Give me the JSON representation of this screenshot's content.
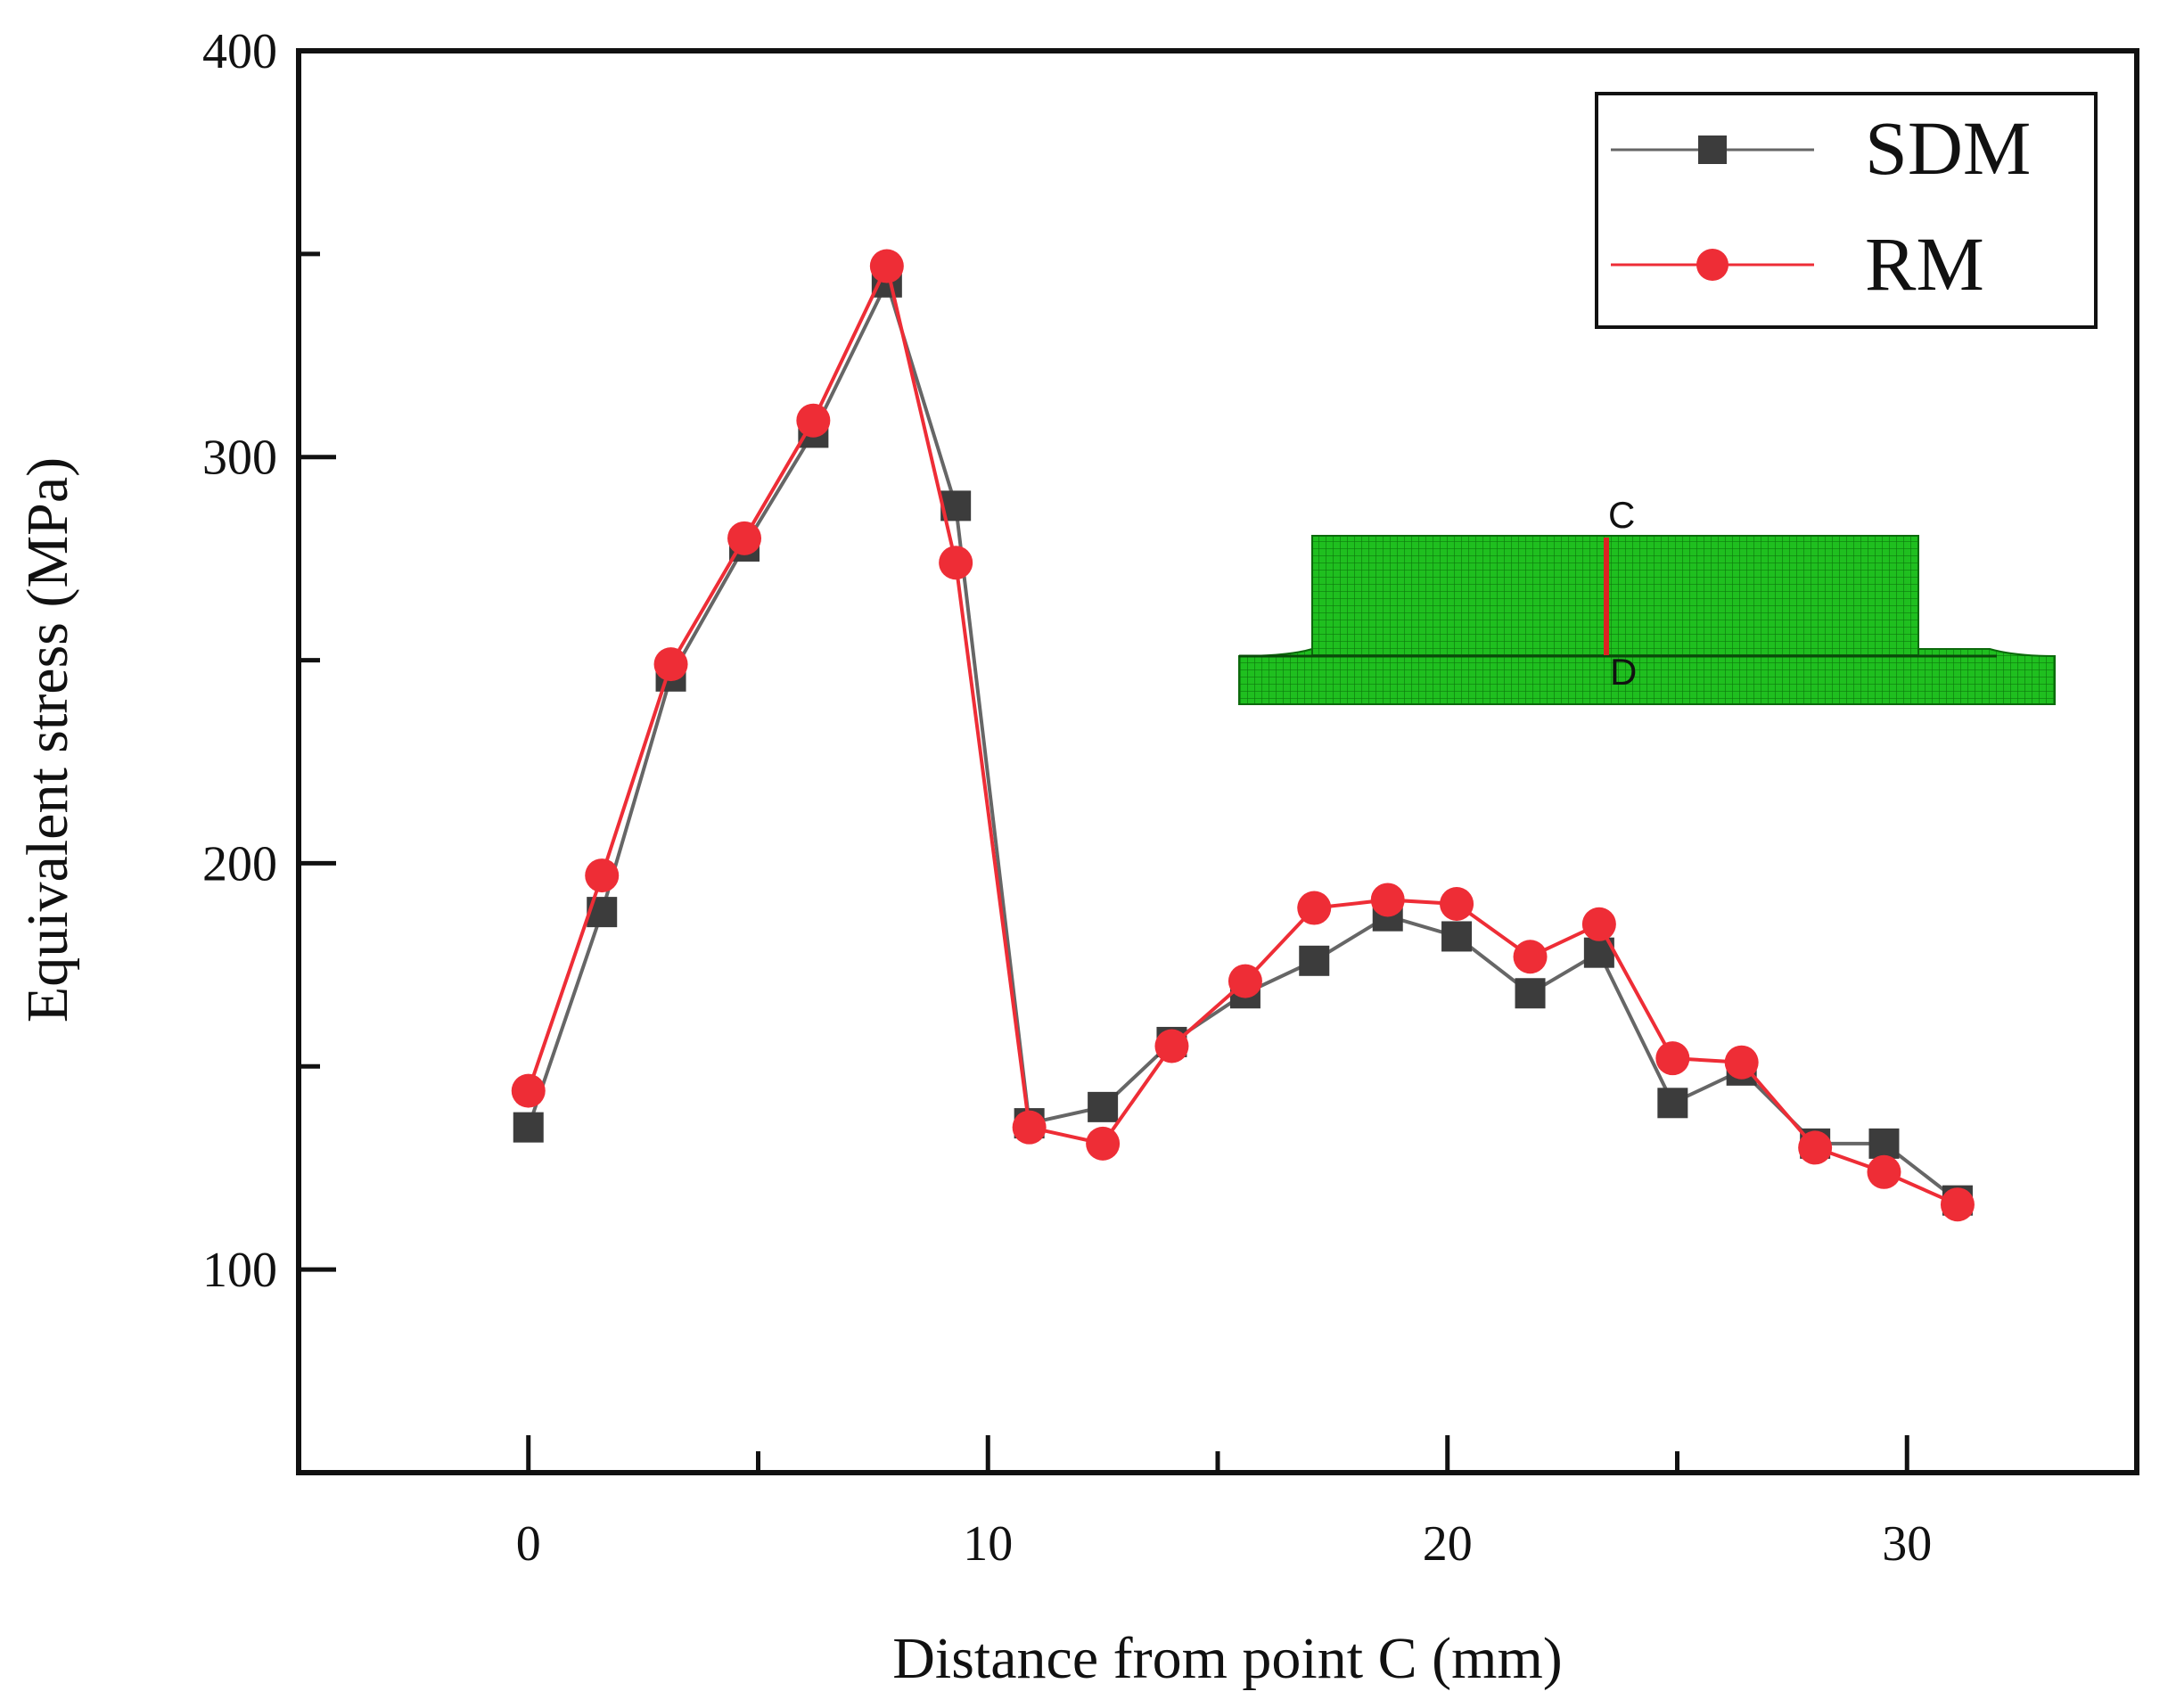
{
  "chart_data": {
    "type": "line",
    "title": "",
    "xlabel": "Distance from point C (mm)",
    "ylabel": "Equivalent stress (MPa)",
    "xlim": [
      -5,
      35
    ],
    "ylim": [
      50,
      400
    ],
    "xticks": [
      0,
      10,
      20,
      30
    ],
    "yticks": [
      100,
      200,
      300,
      400
    ],
    "x_minor_ticks": [
      0,
      5,
      10,
      15,
      20,
      25,
      30
    ],
    "y_minor_ticks": [
      100,
      150,
      200,
      250,
      300,
      350,
      400
    ],
    "grid": false,
    "legend_position": "top-right",
    "series": [
      {
        "name": "SDM",
        "color": "#3c3c3c",
        "line_color": "#666666",
        "marker": "square",
        "x": [
          0,
          1.6,
          3.1,
          4.7,
          6.2,
          7.8,
          9.3,
          10.9,
          12.5,
          14.0,
          15.6,
          17.1,
          18.7,
          20.2,
          21.8,
          23.3,
          24.9,
          26.4,
          28.0,
          29.5,
          31.1
        ],
        "values": [
          135,
          188,
          246,
          278,
          306,
          343,
          288,
          136,
          140,
          156,
          168,
          176,
          187,
          182,
          168,
          178,
          141,
          149,
          131,
          131,
          117
        ]
      },
      {
        "name": "RM",
        "color": "#ee2d36",
        "line_color": "#ee2d36",
        "marker": "circle",
        "x": [
          0,
          1.6,
          3.1,
          4.7,
          6.2,
          7.8,
          9.3,
          10.9,
          12.5,
          14.0,
          15.6,
          17.1,
          18.7,
          20.2,
          21.8,
          23.3,
          24.9,
          26.4,
          28.0,
          29.5,
          31.1
        ],
        "values": [
          144,
          197,
          249,
          280,
          309,
          347,
          274,
          135,
          131,
          155,
          171,
          189,
          191,
          190,
          177,
          185,
          152,
          151,
          130,
          124,
          116
        ]
      }
    ],
    "inset": {
      "description_labels": [
        "C",
        "D"
      ],
      "mesh_color": "#11a611",
      "line_color": "#dd2222"
    }
  }
}
